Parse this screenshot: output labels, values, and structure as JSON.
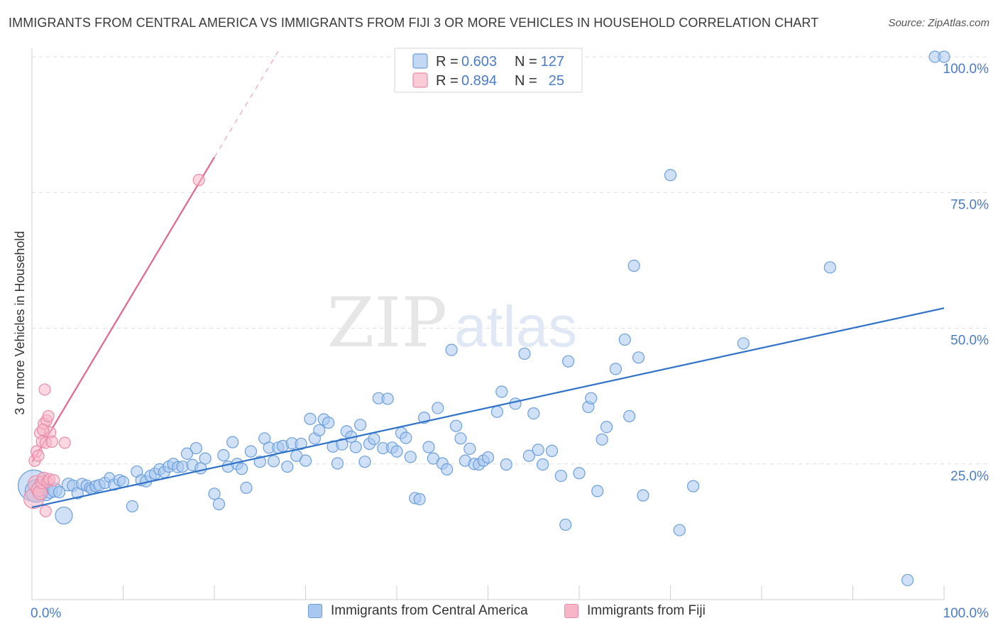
{
  "header": {
    "title": "IMMIGRANTS FROM CENTRAL AMERICA VS IMMIGRANTS FROM FIJI 3 OR MORE VEHICLES IN HOUSEHOLD CORRELATION CHART",
    "source": "Source: ZipAtlas.com"
  },
  "watermark": {
    "zip": "ZIP",
    "atlas": "atlas"
  },
  "colors": {
    "blue_fill": "#a9c8f0",
    "blue_stroke": "#6a9fdc",
    "blue_line": "#2f72c9",
    "pink_fill": "#f6b6c8",
    "pink_stroke": "#ea8aa7",
    "pink_line": "#e06690",
    "tick_label": "#4a7cc8",
    "grid": "#dddddd"
  },
  "chart_data": {
    "type": "scatter",
    "ylabel": "3 or more Vehicles in Household",
    "xlim": [
      0,
      100
    ],
    "ylim": [
      0,
      100
    ],
    "x_tick_labels": [
      "0.0%",
      "100.0%"
    ],
    "y_ticks": [
      {
        "value": 25,
        "label": "25.0%"
      },
      {
        "value": 50,
        "label": "50.0%"
      },
      {
        "value": 75,
        "label": "75.0%"
      },
      {
        "value": 100,
        "label": "100.0%"
      }
    ],
    "grid": true,
    "legend_placement": "top-center",
    "legend": [
      {
        "r_label": "R = ",
        "r_value": "0.603",
        "n_label": "N = ",
        "n_value": "127"
      },
      {
        "r_label": "R = ",
        "r_value": "0.894",
        "n_label": "N = ",
        "n_value": "25"
      }
    ],
    "series": [
      {
        "name": "Immigrants from Central America",
        "color": "blue",
        "trend": {
          "x": [
            0,
            100
          ],
          "y": [
            17.0,
            53.7
          ]
        },
        "points": [
          [
            0.2,
            21,
            22
          ],
          [
            0.5,
            20,
            16
          ],
          [
            1,
            20.5,
            12
          ],
          [
            1.5,
            19.8,
            12
          ],
          [
            2,
            20,
            10
          ],
          [
            2.5,
            20.2,
            10
          ],
          [
            3,
            19.8,
            8
          ],
          [
            3.5,
            15.5,
            12
          ],
          [
            4,
            21.2,
            9
          ],
          [
            4.5,
            21,
            8
          ],
          [
            5,
            19.6,
            8
          ],
          [
            5.5,
            21.3,
            8
          ],
          [
            6,
            21,
            8
          ],
          [
            6.3,
            20.6,
            7
          ],
          [
            6.5,
            20.3,
            7
          ],
          [
            7,
            20.9,
            8
          ],
          [
            7.4,
            21.1,
            8
          ],
          [
            8,
            21.5,
            8
          ],
          [
            8.5,
            22.5,
            7
          ],
          [
            9,
            21.2,
            8
          ],
          [
            9.6,
            22,
            8
          ],
          [
            10,
            21.7,
            8
          ],
          [
            11,
            17.2,
            8
          ],
          [
            11.5,
            23.6,
            8
          ],
          [
            12,
            22,
            8
          ],
          [
            12.5,
            21.8,
            8
          ],
          [
            13,
            22.8,
            8
          ],
          [
            13.5,
            23.2,
            8
          ],
          [
            14,
            24,
            8
          ],
          [
            14.5,
            23.5,
            8
          ],
          [
            15,
            24.5,
            8
          ],
          [
            15.5,
            25,
            8
          ],
          [
            16,
            24.4,
            8
          ],
          [
            16.5,
            24.5,
            8
          ],
          [
            17,
            26.9,
            8
          ],
          [
            17.6,
            24.8,
            8
          ],
          [
            18,
            27.9,
            8
          ],
          [
            18.5,
            24.2,
            8
          ],
          [
            19,
            26,
            8
          ],
          [
            20,
            19.5,
            8
          ],
          [
            20.5,
            17.6,
            8
          ],
          [
            21,
            26.6,
            8
          ],
          [
            21.5,
            24.5,
            8
          ],
          [
            22,
            29,
            8
          ],
          [
            22.5,
            25,
            8
          ],
          [
            23,
            24.1,
            8
          ],
          [
            23.5,
            20.6,
            8
          ],
          [
            24,
            27.3,
            8
          ],
          [
            25,
            25.4,
            8
          ],
          [
            25.5,
            29.7,
            8
          ],
          [
            26,
            28,
            8
          ],
          [
            26.5,
            25.5,
            8
          ],
          [
            27,
            28,
            8
          ],
          [
            27.5,
            28.3,
            8
          ],
          [
            28,
            24.5,
            8
          ],
          [
            28.5,
            28.8,
            8
          ],
          [
            29,
            26.5,
            8
          ],
          [
            29.5,
            28.7,
            8
          ],
          [
            30,
            25.6,
            8
          ],
          [
            30.5,
            33.3,
            8
          ],
          [
            31,
            29.7,
            8
          ],
          [
            31.5,
            31.2,
            8
          ],
          [
            32,
            33.2,
            8
          ],
          [
            32.5,
            32.6,
            8
          ],
          [
            33,
            28.2,
            8
          ],
          [
            33.5,
            25.1,
            8
          ],
          [
            34,
            28.6,
            8
          ],
          [
            34.5,
            31,
            8
          ],
          [
            35,
            30,
            8
          ],
          [
            35.5,
            28.1,
            8
          ],
          [
            36,
            32.2,
            8
          ],
          [
            36.5,
            25.4,
            8
          ],
          [
            37,
            28.7,
            8
          ],
          [
            37.5,
            29.6,
            8
          ],
          [
            38,
            37.1,
            8
          ],
          [
            38.5,
            27.9,
            8
          ],
          [
            39,
            37,
            8
          ],
          [
            39.5,
            28,
            8
          ],
          [
            40,
            27.3,
            8
          ],
          [
            40.5,
            30.7,
            8
          ],
          [
            41,
            29.8,
            8
          ],
          [
            41.5,
            26.3,
            8
          ],
          [
            42,
            18.7,
            8
          ],
          [
            42.5,
            18.5,
            8
          ],
          [
            43,
            33.5,
            8
          ],
          [
            43.5,
            28.1,
            8
          ],
          [
            44,
            26,
            8
          ],
          [
            44.5,
            35.3,
            8
          ],
          [
            45,
            25.1,
            8
          ],
          [
            45.5,
            24,
            8
          ],
          [
            46,
            46,
            8
          ],
          [
            46.5,
            32,
            8
          ],
          [
            47,
            29.7,
            8
          ],
          [
            47.5,
            25.6,
            8
          ],
          [
            48,
            27.8,
            8
          ],
          [
            48.5,
            25,
            8
          ],
          [
            49,
            24.9,
            8
          ],
          [
            49.5,
            25.6,
            8
          ],
          [
            50,
            26.2,
            8
          ],
          [
            51,
            34.6,
            8
          ],
          [
            51.5,
            38.3,
            8
          ],
          [
            52,
            24.9,
            8
          ],
          [
            53,
            36.1,
            8
          ],
          [
            54,
            45.3,
            8
          ],
          [
            54.5,
            26.5,
            8
          ],
          [
            55,
            34.3,
            8
          ],
          [
            55.5,
            27.6,
            8
          ],
          [
            56,
            24.9,
            8
          ],
          [
            57,
            27.4,
            8
          ],
          [
            58,
            22.8,
            8
          ],
          [
            58.5,
            13.8,
            8
          ],
          [
            58.8,
            43.9,
            8
          ],
          [
            60,
            23.3,
            8
          ],
          [
            61,
            35.5,
            8
          ],
          [
            61.3,
            37.1,
            8
          ],
          [
            62,
            20,
            8
          ],
          [
            62.5,
            29.5,
            8
          ],
          [
            63,
            31.8,
            8
          ],
          [
            64,
            42.5,
            8
          ],
          [
            65,
            47.9,
            8
          ],
          [
            65.5,
            33.8,
            8
          ],
          [
            66,
            61.5,
            8
          ],
          [
            66.5,
            44.6,
            8
          ],
          [
            67,
            19.2,
            8
          ],
          [
            70,
            78.2,
            8
          ],
          [
            71,
            12.8,
            8
          ],
          [
            72.5,
            20.9,
            8
          ],
          [
            78,
            47.2,
            8
          ],
          [
            87.5,
            61.2,
            8
          ],
          [
            96,
            3.6,
            8
          ],
          [
            99,
            100,
            8
          ],
          [
            100,
            100,
            8
          ]
        ]
      },
      {
        "name": "Immigrants from Fiji",
        "color": "pink",
        "trend": {
          "x": [
            0,
            20
          ],
          "y": [
            25.3,
            81.5
          ]
        },
        "trend_extension": {
          "x": [
            20,
            27
          ],
          "y": [
            81.5,
            101
          ]
        },
        "points": [
          [
            0.2,
            18.6,
            14
          ],
          [
            0.5,
            21.3,
            12
          ],
          [
            0.7,
            20.3,
            10
          ],
          [
            0.9,
            19.7,
            10
          ],
          [
            1.1,
            21.6,
            9
          ],
          [
            1.3,
            22.3,
            9
          ],
          [
            1.5,
            16.3,
            8
          ],
          [
            1.7,
            21.7,
            8
          ],
          [
            1.9,
            22.2,
            8
          ],
          [
            0.3,
            25.6,
            8
          ],
          [
            0.5,
            27.3,
            8
          ],
          [
            0.7,
            26.5,
            8
          ],
          [
            0.9,
            30.7,
            8
          ],
          [
            1.1,
            29.1,
            8
          ],
          [
            1.3,
            32.4,
            8
          ],
          [
            1.5,
            28.9,
            8
          ],
          [
            1.6,
            33,
            8
          ],
          [
            1.8,
            33.8,
            8
          ],
          [
            2,
            30.8,
            8
          ],
          [
            2.2,
            29.1,
            8
          ],
          [
            1.4,
            38.7,
            8
          ],
          [
            2.4,
            22,
            8
          ],
          [
            3.6,
            28.9,
            8
          ],
          [
            1.2,
            31.3,
            8
          ],
          [
            18.3,
            77.3,
            8
          ]
        ]
      }
    ]
  }
}
